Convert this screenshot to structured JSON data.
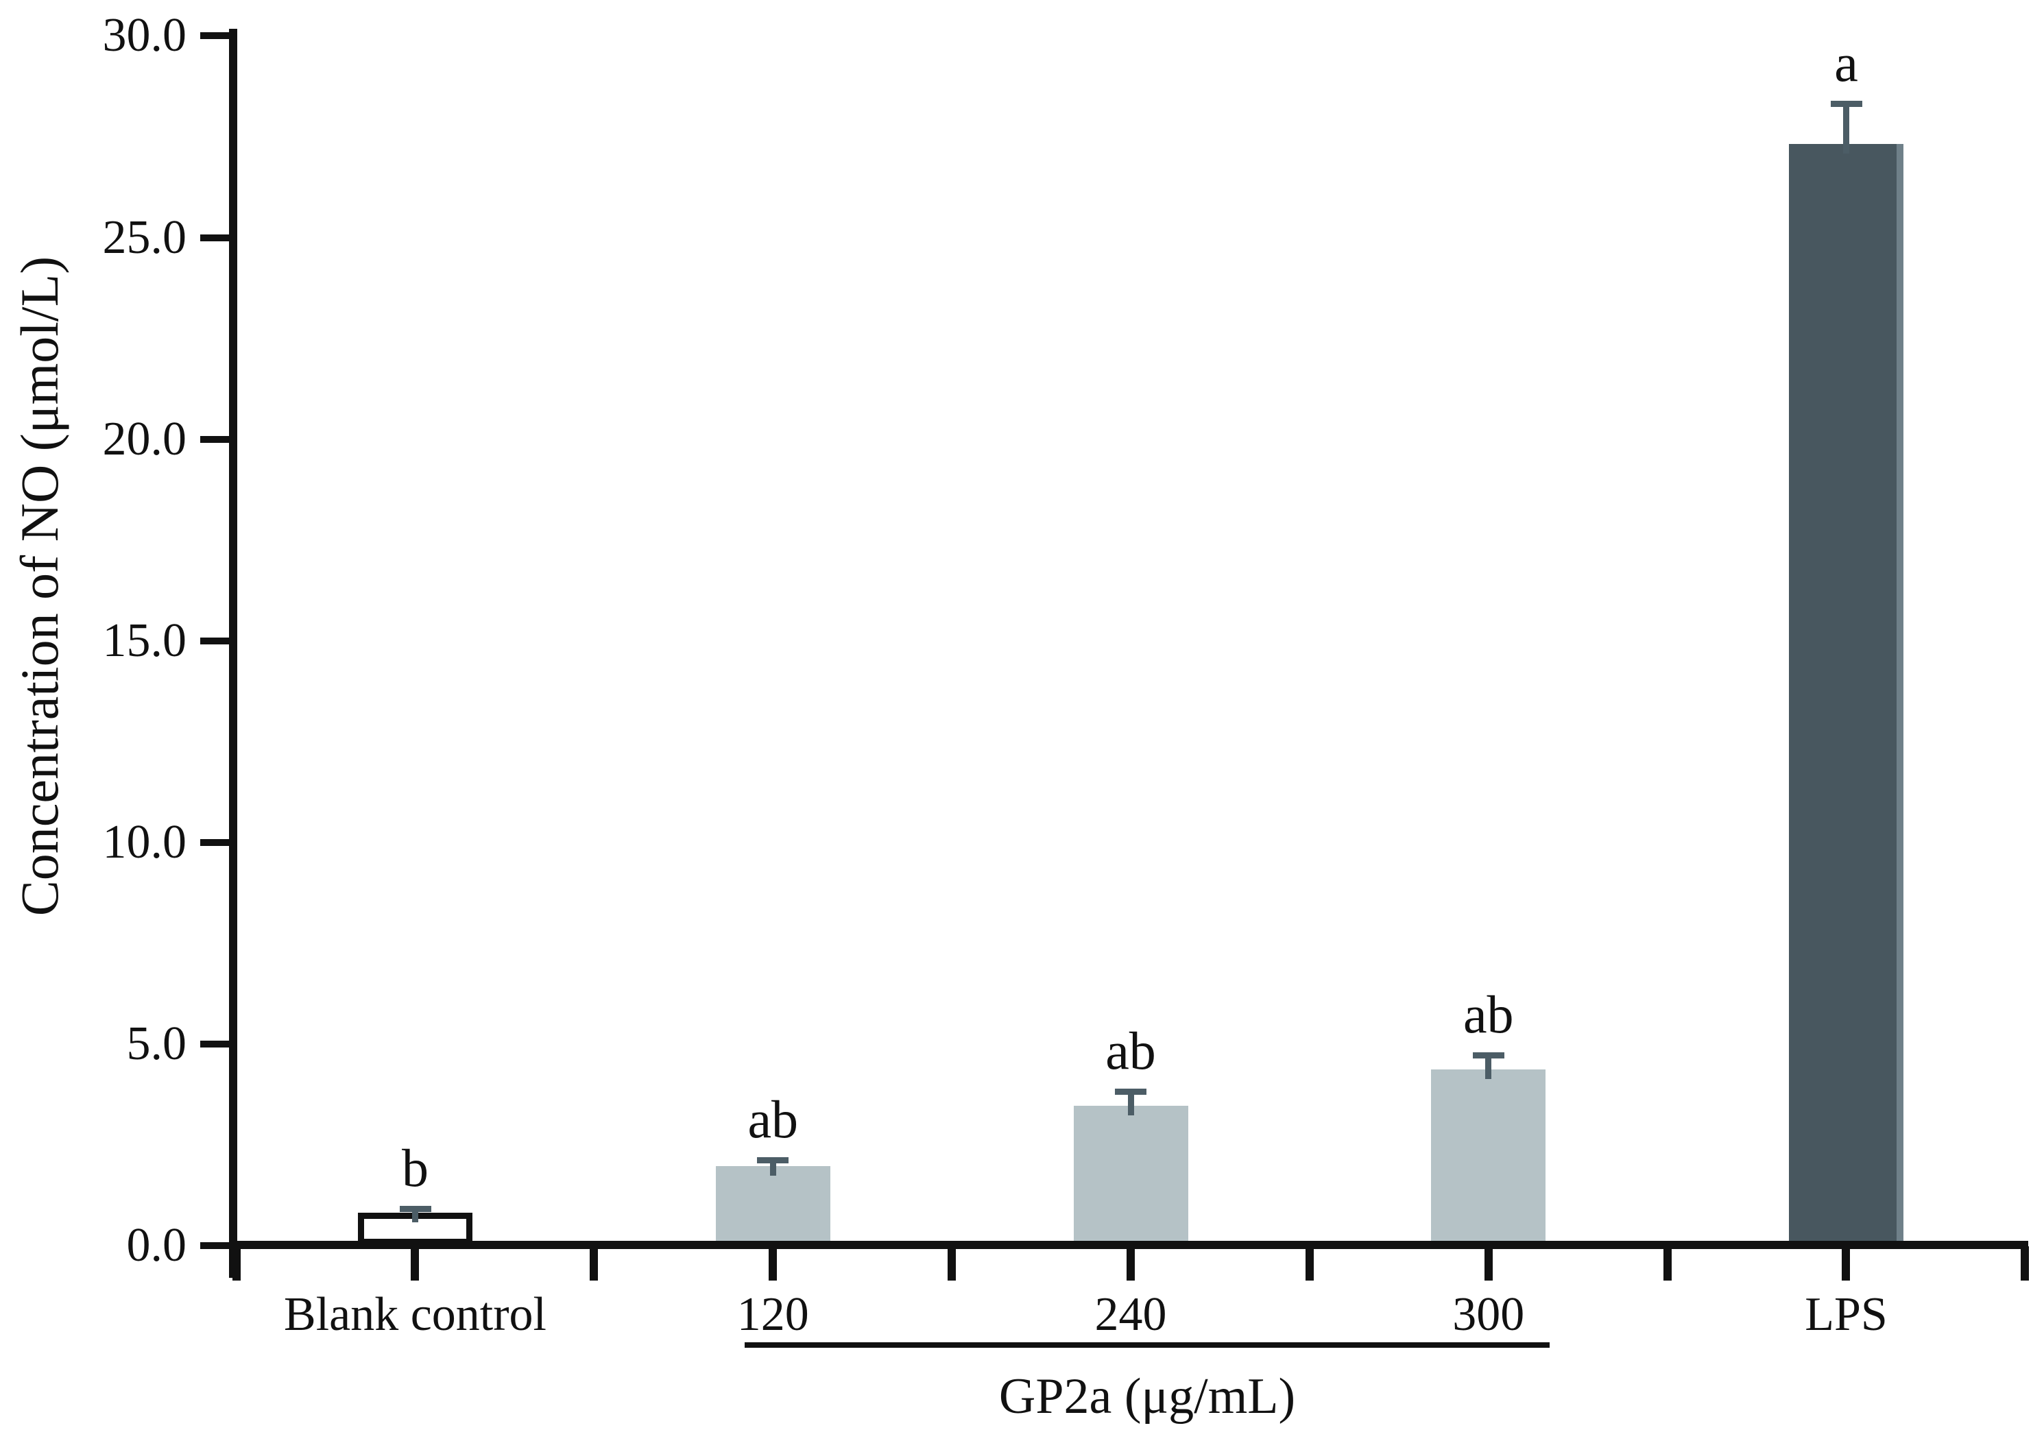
{
  "figure": {
    "background": "#ffffff",
    "axis_color": "#111111",
    "text_color": "#111111",
    "baseline_stripe_color": "#b5c2c6"
  },
  "chart_data": {
    "type": "bar",
    "title": "",
    "ylabel": "Concentration of NO (μmol/L)",
    "xlabel": "",
    "ylim": [
      0,
      30
    ],
    "yticks": [
      0,
      5,
      10,
      15,
      20,
      25,
      30
    ],
    "ytick_labels": [
      "0.0",
      "5.0",
      "10.0",
      "15.0",
      "20.0",
      "25.0",
      "30.0"
    ],
    "grid": false,
    "legend": null,
    "categories": [
      "Blank control",
      "120",
      "240",
      "300",
      "LPS"
    ],
    "values": [
      0.7,
      1.85,
      3.35,
      4.25,
      27.2
    ],
    "error_bars": [
      0.1,
      0.15,
      0.35,
      0.35,
      1.0
    ],
    "significance_labels": [
      "b",
      "ab",
      "ab",
      "ab",
      "a"
    ],
    "bars": [
      {
        "label": "Blank control",
        "value": 0.7,
        "error": 0.1,
        "sig": "b",
        "fill": "#ffffff",
        "outlined": true,
        "edge": null
      },
      {
        "label": "120",
        "value": 1.85,
        "error": 0.15,
        "sig": "ab",
        "fill": "#b5c2c6",
        "outlined": false,
        "edge": null
      },
      {
        "label": "240",
        "value": 3.35,
        "error": 0.35,
        "sig": "ab",
        "fill": "#b5c2c6",
        "outlined": false,
        "edge": null
      },
      {
        "label": "300",
        "value": 4.25,
        "error": 0.35,
        "sig": "ab",
        "fill": "#b5c2c6",
        "outlined": false,
        "edge": null
      },
      {
        "label": "LPS",
        "value": 27.2,
        "error": 1.0,
        "sig": "a",
        "fill": "#48575f",
        "outlined": false,
        "edge": "#6f8089"
      }
    ],
    "error_bar_color": "#4c5d66",
    "group": {
      "label": "GP2a (μg/mL)",
      "members": [
        "120",
        "240",
        "300"
      ],
      "underline": true
    }
  }
}
